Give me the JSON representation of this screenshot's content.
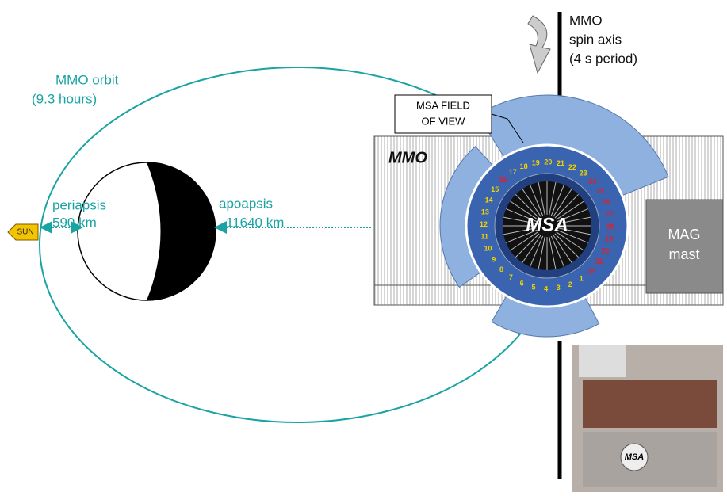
{
  "orbit": {
    "label": "MMO orbit",
    "period": "(9.3 hours)"
  },
  "periapsis": {
    "label": "periapsis",
    "distance": "590 km"
  },
  "apoapsis": {
    "label": "apoapsis",
    "distance": "11640 km"
  },
  "sun": "SUN",
  "spacecraft": {
    "name": "MMO",
    "fov_label": [
      "MSA FIELD",
      "OF VIEW"
    ],
    "instrument": "MSA",
    "mag": [
      "MAG",
      "mast"
    ],
    "sectors": [
      "1",
      "2",
      "3",
      "4",
      "5",
      "6",
      "7",
      "8",
      "9",
      "10",
      "11",
      "12",
      "13",
      "14",
      "15",
      "16",
      "17",
      "18",
      "19",
      "20",
      "21",
      "22",
      "23",
      "24",
      "25",
      "26",
      "27",
      "28",
      "29",
      "30",
      "31",
      "32"
    ]
  },
  "spin": {
    "lines": [
      "MMO",
      "spin axis",
      "(4 s period)"
    ]
  },
  "photo": {
    "label": "MSA"
  }
}
